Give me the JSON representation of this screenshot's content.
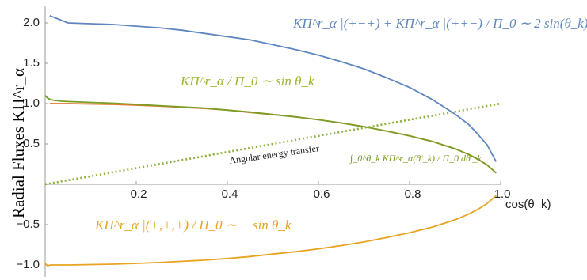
{
  "chart_data": {
    "type": "line",
    "xlabel": "cos(θ_k)",
    "ylabel": "Radial Fluxes KΠ^r_α",
    "xlim": [
      0,
      1
    ],
    "ylim": [
      -1.1,
      2.2
    ],
    "x_ticks": [
      "0.2",
      "0.4",
      "0.6",
      "0.8",
      "1.0"
    ],
    "y_ticks": [
      "−1.0",
      "−0.5",
      "0.5",
      "1.0",
      "1.5",
      "2.0"
    ],
    "grid": false,
    "legend": "none",
    "series": [
      {
        "color": "#5f87bf",
        "x": [
          0.01,
          0.05,
          0.1,
          0.15,
          0.2,
          0.25,
          0.3,
          0.35,
          0.4,
          0.45,
          0.5,
          0.55,
          0.6,
          0.65,
          0.7,
          0.75,
          0.8,
          0.85,
          0.9,
          0.93,
          0.95,
          0.97,
          0.99
        ],
        "y": [
          2.09,
          2.0,
          1.99,
          1.98,
          1.96,
          1.94,
          1.91,
          1.87,
          1.83,
          1.79,
          1.73,
          1.67,
          1.6,
          1.52,
          1.43,
          1.32,
          1.2,
          1.05,
          0.87,
          0.74,
          0.62,
          0.49,
          0.28
        ]
      },
      {
        "color": "#e07a2e",
        "x": [
          0.01,
          0.05,
          0.1,
          0.15,
          0.2,
          0.25,
          0.3,
          0.35,
          0.4,
          0.45,
          0.5,
          0.55,
          0.6,
          0.65,
          0.7,
          0.75,
          0.8,
          0.85,
          0.9,
          0.93,
          0.95,
          0.97,
          0.99
        ],
        "y": [
          1.0,
          1.0,
          0.995,
          0.99,
          0.98,
          0.97,
          0.955,
          0.94,
          0.92,
          0.89,
          0.865,
          0.835,
          0.8,
          0.76,
          0.715,
          0.66,
          0.6,
          0.53,
          0.44,
          0.37,
          0.31,
          0.24,
          0.14
        ]
      },
      {
        "color": "#7a9e25",
        "x": [
          0.0,
          0.005,
          0.012,
          0.02,
          0.035,
          0.05,
          0.1,
          0.15,
          0.2,
          0.25,
          0.3,
          0.35,
          0.4,
          0.45,
          0.5,
          0.55,
          0.6,
          0.65,
          0.7,
          0.75,
          0.8,
          0.85,
          0.9,
          0.93,
          0.95,
          0.97,
          0.99
        ],
        "y": [
          1.1,
          1.07,
          1.05,
          1.04,
          1.03,
          1.025,
          1.015,
          1.005,
          0.99,
          0.975,
          0.96,
          0.945,
          0.92,
          0.895,
          0.865,
          0.835,
          0.8,
          0.76,
          0.715,
          0.66,
          0.6,
          0.53,
          0.44,
          0.37,
          0.31,
          0.24,
          0.14
        ]
      },
      {
        "color": "#e8a321",
        "x": [
          0.0,
          0.005,
          0.012,
          0.02,
          0.05,
          0.1,
          0.15,
          0.2,
          0.25,
          0.3,
          0.35,
          0.4,
          0.45,
          0.5,
          0.55,
          0.6,
          0.65,
          0.7,
          0.75,
          0.8,
          0.85,
          0.9,
          0.93,
          0.95,
          0.97,
          0.99
        ],
        "y": [
          -0.98,
          -1.01,
          -1.0,
          -1.0,
          -1.0,
          -0.995,
          -0.99,
          -0.98,
          -0.97,
          -0.955,
          -0.94,
          -0.92,
          -0.895,
          -0.865,
          -0.835,
          -0.8,
          -0.76,
          -0.715,
          -0.66,
          -0.6,
          -0.53,
          -0.44,
          -0.37,
          -0.31,
          -0.24,
          -0.14
        ]
      },
      {
        "color": "#8db03a",
        "dashed": true,
        "x": [
          0.0,
          1.0
        ],
        "y": [
          0.0,
          1.0
        ]
      }
    ],
    "annotations": {
      "blue_formula": "KΠ^r_α |(+−+) + KΠ^r_α |(++−) / Π_0 ∼ 2 sin(θ_k)",
      "green_orange_formula": "KΠ^r_α / Π_0 ∼ sin θ_k",
      "yellow_formula": "KΠ^r_α |(+,+,+) / Π_0 ∼ − sin θ_k",
      "transfer_label": "Angular energy transfer",
      "transfer_formula": "∫_0^θ_k KΠ^r_α(θ'_k) / Π_0 dθ'_k"
    }
  }
}
